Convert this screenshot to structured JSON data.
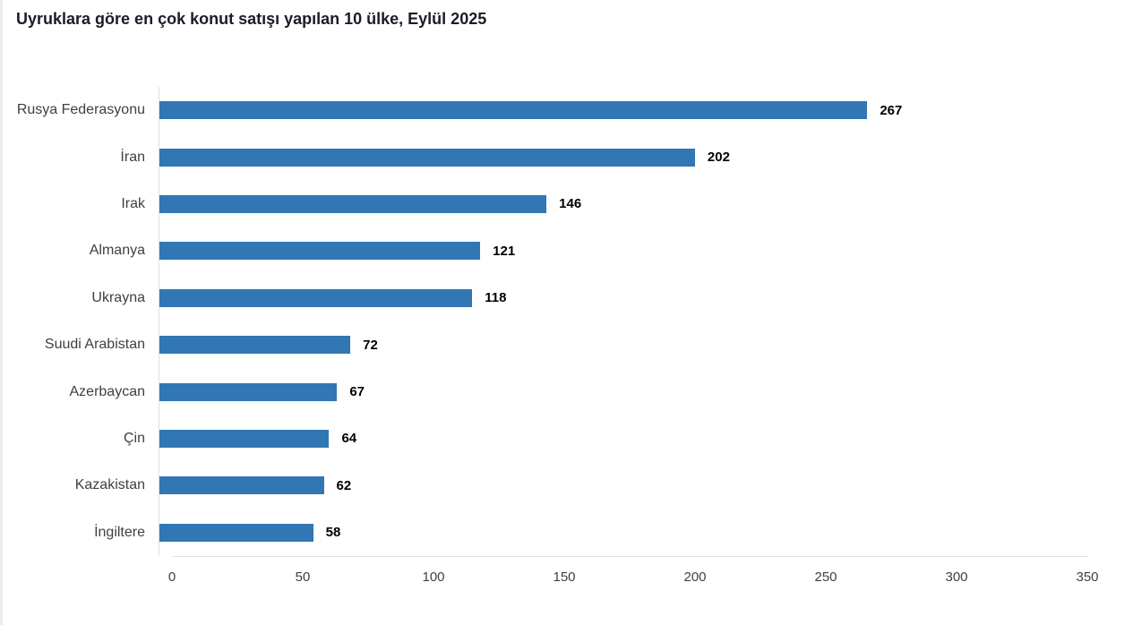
{
  "chart_data": {
    "type": "bar",
    "orientation": "horizontal",
    "title": "Uyruklara göre en çok konut satışı yapılan 10 ülke, Eylül 2025",
    "categories": [
      "Rusya Federasyonu",
      "İran",
      "Irak",
      "Almanya",
      "Ukrayna",
      "Suudi Arabistan",
      "Azerbaycan",
      "Çin",
      "Kazakistan",
      "İngiltere"
    ],
    "values": [
      267,
      202,
      146,
      121,
      118,
      72,
      67,
      64,
      62,
      58
    ],
    "xlabel": "",
    "ylabel": "",
    "xlim": [
      0,
      350
    ],
    "x_ticks": [
      0,
      50,
      100,
      150,
      200,
      250,
      300,
      350
    ],
    "grid": false,
    "legend": "none",
    "value_labels": "end-of-bar",
    "colors": {
      "bar": "#3177b4",
      "title": "#1b1b2a",
      "category_labels": "#404040",
      "tick_labels": "#404040",
      "value_labels": "#000000",
      "axis_lines": "#e0e0e0"
    }
  }
}
